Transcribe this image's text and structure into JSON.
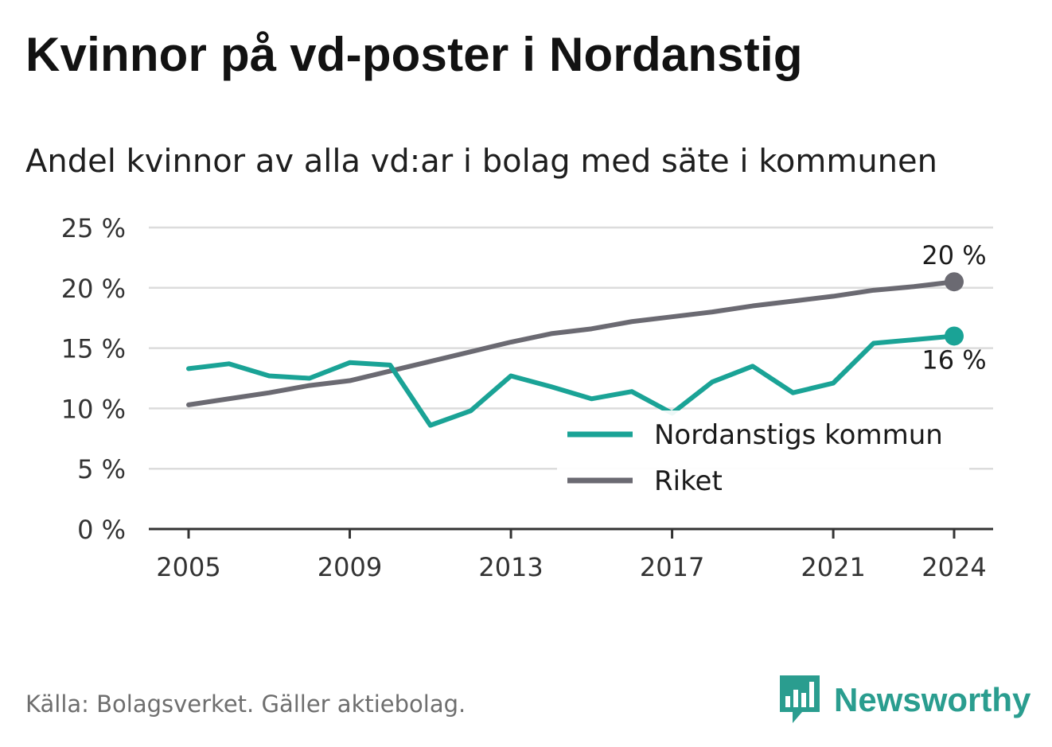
{
  "title": "Kvinnor på vd-poster i Nordanstig",
  "subtitle": "Andel kvinnor av alla vd:ar i bolag med säte i kommunen",
  "source": "Källa: Bolagsverket. Gäller aktiebolag.",
  "brand": {
    "name": "Newsworthy",
    "icon": "newsworthy-logo-icon",
    "color": "#2a9d8f"
  },
  "chart_data": {
    "type": "line",
    "x": [
      2005,
      2006,
      2007,
      2008,
      2009,
      2010,
      2011,
      2012,
      2013,
      2014,
      2015,
      2016,
      2017,
      2018,
      2019,
      2020,
      2021,
      2022,
      2023,
      2024
    ],
    "x_tick_labels": [
      "2005",
      "2009",
      "2013",
      "2017",
      "2021",
      "2024"
    ],
    "x_ticks": [
      2005,
      2009,
      2013,
      2017,
      2021,
      2024
    ],
    "y_tick_labels": [
      "0 %",
      "5 %",
      "10 %",
      "15 %",
      "20 %",
      "25 %"
    ],
    "y_ticks": [
      0,
      5,
      10,
      15,
      20,
      25
    ],
    "ylim": [
      0,
      25
    ],
    "grid": true,
    "legend_position": "bottom-right",
    "series": [
      {
        "name": "Nordanstigs kommun",
        "color": "#1aa396",
        "values": [
          13.3,
          13.7,
          12.7,
          12.5,
          13.8,
          13.6,
          8.6,
          9.8,
          12.7,
          11.8,
          10.8,
          11.4,
          9.6,
          12.2,
          13.5,
          11.3,
          12.1,
          15.4,
          15.7,
          16.0
        ],
        "end_label": "16 %"
      },
      {
        "name": "Riket",
        "color": "#6b6a72",
        "values": [
          10.3,
          10.8,
          11.3,
          11.9,
          12.3,
          13.1,
          13.9,
          14.7,
          15.5,
          16.2,
          16.6,
          17.2,
          17.6,
          18.0,
          18.5,
          18.9,
          19.3,
          19.8,
          20.1,
          20.5
        ],
        "end_label": "20 %"
      }
    ]
  }
}
